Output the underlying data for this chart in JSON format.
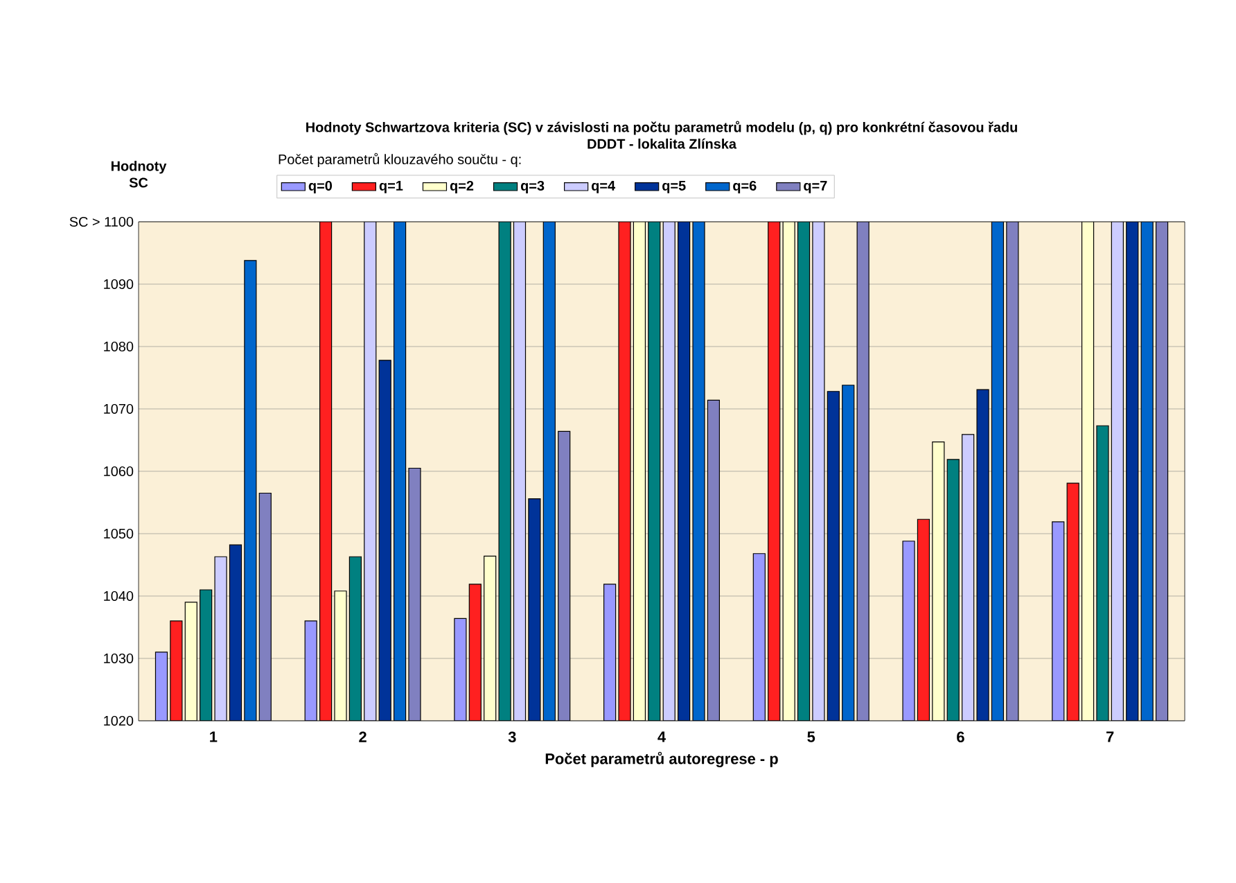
{
  "chart_data": {
    "type": "bar",
    "title": "Hodnoty Schwartzova kriteria (SC) v závislosti na počtu parametrů modelu (p, q) pro konkrétní časovou řadu",
    "subtitle": "DDDT - lokalita Zlínska",
    "xlabel": "Počet parametrů autoregrese - p",
    "ylabel": "Hodnoty SC",
    "legend_title": "Počet parametrů klouzavého součtu - q:",
    "categories": [
      "1",
      "2",
      "3",
      "4",
      "5",
      "6",
      "7"
    ],
    "series": [
      {
        "name": "q=0",
        "color": "#9999ff",
        "values": [
          1031,
          1036,
          1036.4,
          1041.9,
          1046.8,
          1048.8,
          1051.9
        ]
      },
      {
        "name": "q=1",
        "color": "#ff2020",
        "values": [
          1036,
          1100,
          1041.9,
          1100,
          1100,
          1052.3,
          1058.1
        ]
      },
      {
        "name": "q=2",
        "color": "#ffffcc",
        "values": [
          1039,
          1040.8,
          1046.4,
          1100,
          1100,
          1064.7,
          1100
        ]
      },
      {
        "name": "q=3",
        "color": "#008080",
        "values": [
          1041,
          1046.3,
          1100,
          1100,
          1100,
          1061.9,
          1067.3
        ]
      },
      {
        "name": "q=4",
        "color": "#ccccff",
        "values": [
          1046.3,
          1100,
          1100,
          1100,
          1100,
          1065.9,
          1100
        ]
      },
      {
        "name": "q=5",
        "color": "#003399",
        "values": [
          1048.2,
          1077.8,
          1055.6,
          1100,
          1072.8,
          1073.1,
          1100
        ]
      },
      {
        "name": "q=6",
        "color": "#0066cc",
        "values": [
          1093.8,
          1100,
          1100,
          1100,
          1073.8,
          1100,
          1100
        ]
      },
      {
        "name": "q=7",
        "color": "#8080c0",
        "values": [
          1056.5,
          1060.5,
          1066.4,
          1071.4,
          1100,
          1100,
          1100
        ]
      }
    ],
    "ylim": [
      1020,
      1100
    ],
    "yticks": [
      1020,
      1030,
      1040,
      1050,
      1060,
      1070,
      1080,
      1090,
      {
        "value": 1100,
        "label": "SC > 1100"
      }
    ],
    "grid": "y",
    "legend": "top"
  }
}
